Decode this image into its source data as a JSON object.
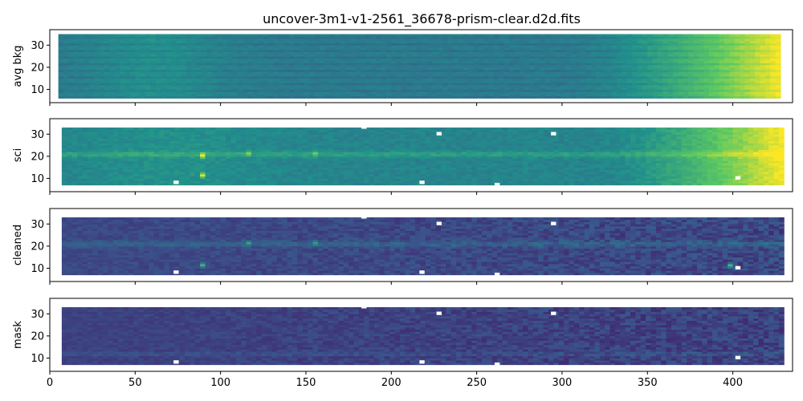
{
  "figure": {
    "title": "uncover-3m1-v1-2561_36678-prism-clear.d2d.fits"
  },
  "colors": {
    "viridis": [
      "#440154",
      "#3b528b",
      "#21918c",
      "#5ec962",
      "#fde725"
    ]
  },
  "chart_data": [
    {
      "type": "heatmap",
      "name": "avg-bkg",
      "ylabel": "avg bkg",
      "xlim": [
        0,
        435
      ],
      "ylim": [
        4,
        37
      ],
      "xticks": [
        0,
        50,
        100,
        150,
        200,
        250,
        300,
        350,
        400
      ],
      "yticks": [
        10,
        20,
        30
      ],
      "show_xtick_labels": false,
      "colormap": "viridis",
      "data_extent": {
        "x": [
          5,
          428
        ],
        "y": [
          6,
          35
        ]
      },
      "masked_cells": []
    },
    {
      "type": "heatmap",
      "name": "sci",
      "ylabel": "sci",
      "xlim": [
        0,
        435
      ],
      "ylim": [
        4,
        37
      ],
      "xticks": [
        0,
        50,
        100,
        150,
        200,
        250,
        300,
        350,
        400
      ],
      "yticks": [
        10,
        20,
        30
      ],
      "show_xtick_labels": false,
      "colormap": "viridis",
      "data_extent": {
        "x": [
          7,
          428
        ],
        "y": [
          7,
          33
        ]
      },
      "features": [
        {
          "x": 88,
          "y": 20
        },
        {
          "x": 88,
          "y": 11
        },
        {
          "x": 114,
          "y": 21
        },
        {
          "x": 153,
          "y": 21
        }
      ],
      "masked_cells": [
        {
          "x": 74,
          "y": 8
        },
        {
          "x": 184,
          "y": 33
        },
        {
          "x": 218,
          "y": 8
        },
        {
          "x": 228,
          "y": 30
        },
        {
          "x": 262,
          "y": 7
        },
        {
          "x": 295,
          "y": 30
        },
        {
          "x": 403,
          "y": 10
        }
      ]
    },
    {
      "type": "heatmap",
      "name": "cleaned",
      "ylabel": "cleaned",
      "xlim": [
        0,
        435
      ],
      "ylim": [
        4,
        37
      ],
      "xticks": [
        0,
        50,
        100,
        150,
        200,
        250,
        300,
        350,
        400
      ],
      "yticks": [
        10,
        20,
        30
      ],
      "show_xtick_labels": false,
      "colormap": "viridis",
      "data_extent": {
        "x": [
          7,
          428
        ],
        "y": [
          7,
          33
        ]
      },
      "features": [
        {
          "x": 88,
          "y": 11
        },
        {
          "x": 114,
          "y": 21
        },
        {
          "x": 153,
          "y": 21
        },
        {
          "x": 397,
          "y": 11
        }
      ],
      "masked_cells": [
        {
          "x": 74,
          "y": 8
        },
        {
          "x": 184,
          "y": 33
        },
        {
          "x": 218,
          "y": 8
        },
        {
          "x": 228,
          "y": 30
        },
        {
          "x": 262,
          "y": 7
        },
        {
          "x": 295,
          "y": 30
        },
        {
          "x": 403,
          "y": 10
        }
      ]
    },
    {
      "type": "heatmap",
      "name": "mask",
      "ylabel": "mask",
      "xlim": [
        0,
        435
      ],
      "ylim": [
        4,
        37
      ],
      "xticks": [
        0,
        50,
        100,
        150,
        200,
        250,
        300,
        350,
        400
      ],
      "yticks": [
        10,
        20,
        30
      ],
      "show_xtick_labels": true,
      "colormap": "viridis",
      "data_extent": {
        "x": [
          7,
          428
        ],
        "y": [
          7,
          33
        ]
      },
      "masked_cells": [
        {
          "x": 74,
          "y": 8
        },
        {
          "x": 184,
          "y": 33
        },
        {
          "x": 218,
          "y": 8
        },
        {
          "x": 228,
          "y": 30
        },
        {
          "x": 262,
          "y": 7
        },
        {
          "x": 295,
          "y": 30
        },
        {
          "x": 403,
          "y": 10
        }
      ]
    }
  ]
}
